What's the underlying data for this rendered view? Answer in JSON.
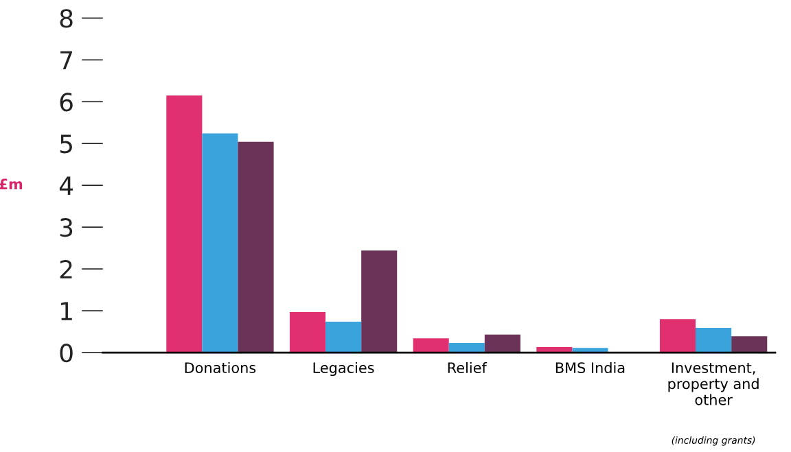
{
  "chart_data": {
    "type": "bar",
    "ylabel": "£m",
    "categories": [
      "Donations",
      "Legacies",
      "Relief",
      "BMS India",
      "Investment,\nproperty and\nother"
    ],
    "series": [
      {
        "color": "#e0306f",
        "values": [
          6.15,
          0.97,
          0.34,
          0.13,
          0.8
        ]
      },
      {
        "color": "#3aa3dc",
        "values": [
          5.24,
          0.74,
          0.23,
          0.11,
          0.59
        ]
      },
      {
        "color": "#6b3358",
        "values": [
          5.04,
          2.44,
          0.43,
          0.0,
          0.39
        ]
      }
    ],
    "ylim": [
      0,
      8
    ],
    "yticks": [
      0,
      1,
      2,
      3,
      4,
      5,
      6,
      7,
      8
    ],
    "annotations": [
      "(including grants)"
    ],
    "grid": false,
    "legend": false
  }
}
